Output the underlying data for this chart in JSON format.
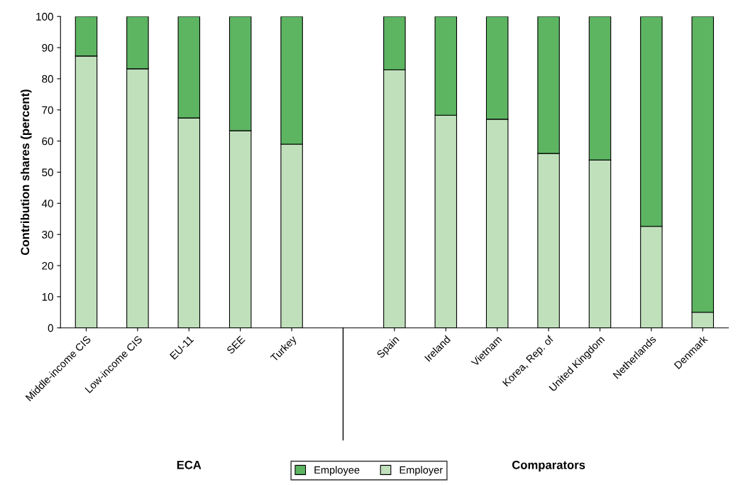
{
  "chart_data": {
    "type": "bar",
    "stacked": true,
    "ylabel": "Contribution shares (percent)",
    "categories": [
      "Middle-income CIS",
      "Low-income CIS",
      "EU-11",
      "SEE",
      "Turkey",
      null,
      "Spain",
      "Ireland",
      "Vietnam",
      "Korea, Rep. of",
      "United Kingdom",
      "Netherlands",
      "Denmark"
    ],
    "series": [
      {
        "name": "Employer",
        "color": "#c0e0bc",
        "values": [
          87.3,
          83.2,
          67.4,
          63.3,
          59.0,
          null,
          82.9,
          68.3,
          67.0,
          56.0,
          53.9,
          32.6,
          5.0
        ]
      },
      {
        "name": "Employee",
        "color": "#5db562",
        "values": [
          12.7,
          16.8,
          32.6,
          36.7,
          41.0,
          null,
          17.1,
          31.7,
          33.0,
          44.0,
          46.1,
          67.4,
          95.0
        ]
      }
    ],
    "ylim": [
      0,
      100
    ],
    "yticks": [
      0,
      10,
      20,
      30,
      40,
      50,
      60,
      70,
      80,
      90,
      100
    ],
    "grid": false,
    "legend": "bottom",
    "annotations": [
      "ECA",
      "Comparators"
    ]
  }
}
